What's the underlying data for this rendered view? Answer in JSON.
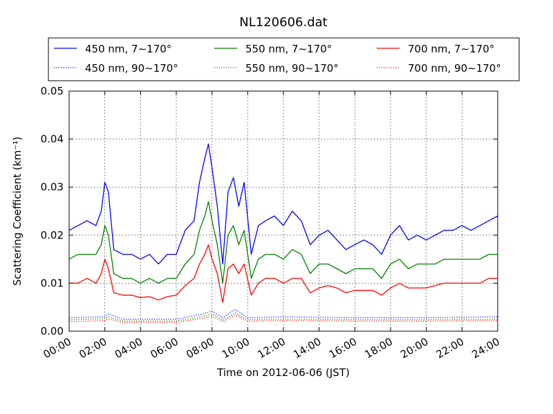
{
  "chart_data": {
    "type": "line",
    "title": "NL120606.dat",
    "xlabel": "Time on 2012-06-06 (JST)",
    "ylabel": "Scattering Coefficient (km⁻¹)",
    "xlim_hours": [
      0,
      24
    ],
    "ylim": [
      0.0,
      0.05
    ],
    "grid": true,
    "legend_position": "top, above plot",
    "x_ticks": [
      "00:00",
      "02:00",
      "04:00",
      "06:00",
      "08:00",
      "10:00",
      "12:00",
      "14:00",
      "16:00",
      "18:00",
      "20:00",
      "22:00",
      "24:00"
    ],
    "y_ticks": [
      "0.00",
      "0.01",
      "0.02",
      "0.03",
      "0.04",
      "0.05"
    ],
    "series": [
      {
        "name": "450 nm, 7∼170°",
        "color": "#0000ff",
        "style": "solid",
        "x": [
          0,
          0.5,
          1,
          1.5,
          1.8,
          2.0,
          2.2,
          2.5,
          3,
          3.5,
          4,
          4.5,
          5,
          5.5,
          6,
          6.5,
          7,
          7.3,
          7.6,
          7.8,
          8.0,
          8.3,
          8.6,
          8.9,
          9.2,
          9.5,
          9.8,
          10.2,
          10.6,
          11,
          11.5,
          12,
          12.5,
          13,
          13.5,
          14,
          14.5,
          15,
          15.5,
          16,
          16.5,
          17,
          17.5,
          18,
          18.5,
          19,
          19.5,
          20,
          20.5,
          21,
          21.5,
          22,
          22.5,
          23,
          23.5,
          24
        ],
        "y": [
          0.021,
          0.022,
          0.023,
          0.022,
          0.025,
          0.031,
          0.029,
          0.017,
          0.016,
          0.016,
          0.015,
          0.016,
          0.014,
          0.016,
          0.016,
          0.021,
          0.023,
          0.031,
          0.036,
          0.039,
          0.034,
          0.026,
          0.014,
          0.029,
          0.032,
          0.026,
          0.031,
          0.016,
          0.022,
          0.023,
          0.024,
          0.022,
          0.025,
          0.023,
          0.018,
          0.02,
          0.021,
          0.019,
          0.017,
          0.018,
          0.019,
          0.018,
          0.016,
          0.02,
          0.022,
          0.019,
          0.02,
          0.019,
          0.02,
          0.021,
          0.021,
          0.022,
          0.021,
          0.022,
          0.023,
          0.024
        ]
      },
      {
        "name": "550 nm, 7∼170°",
        "color": "#008000",
        "style": "solid",
        "x": [
          0,
          0.5,
          1,
          1.5,
          1.8,
          2.0,
          2.2,
          2.5,
          3,
          3.5,
          4,
          4.5,
          5,
          5.5,
          6,
          6.5,
          7,
          7.3,
          7.6,
          7.8,
          8.0,
          8.3,
          8.6,
          8.9,
          9.2,
          9.5,
          9.8,
          10.2,
          10.6,
          11,
          11.5,
          12,
          12.5,
          13,
          13.5,
          14,
          14.5,
          15,
          15.5,
          16,
          16.5,
          17,
          17.5,
          18,
          18.5,
          19,
          19.5,
          20,
          20.5,
          21,
          21.5,
          22,
          22.5,
          23,
          23.5,
          24
        ],
        "y": [
          0.015,
          0.016,
          0.016,
          0.016,
          0.018,
          0.022,
          0.02,
          0.012,
          0.011,
          0.011,
          0.01,
          0.011,
          0.01,
          0.011,
          0.011,
          0.014,
          0.016,
          0.021,
          0.024,
          0.027,
          0.023,
          0.018,
          0.01,
          0.02,
          0.022,
          0.018,
          0.021,
          0.011,
          0.015,
          0.016,
          0.016,
          0.015,
          0.017,
          0.016,
          0.012,
          0.014,
          0.014,
          0.013,
          0.012,
          0.013,
          0.013,
          0.013,
          0.011,
          0.014,
          0.015,
          0.013,
          0.014,
          0.014,
          0.014,
          0.015,
          0.015,
          0.015,
          0.015,
          0.015,
          0.016,
          0.016
        ]
      },
      {
        "name": "700 nm, 7∼170°",
        "color": "#ff0000",
        "style": "solid",
        "x": [
          0,
          0.5,
          1,
          1.5,
          1.8,
          2.0,
          2.2,
          2.5,
          3,
          3.5,
          4,
          4.5,
          5,
          5.5,
          6,
          6.5,
          7,
          7.3,
          7.6,
          7.8,
          8.0,
          8.3,
          8.6,
          8.9,
          9.2,
          9.5,
          9.8,
          10.2,
          10.6,
          11,
          11.5,
          12,
          12.5,
          13,
          13.5,
          14,
          14.5,
          15,
          15.5,
          16,
          16.5,
          17,
          17.5,
          18,
          18.5,
          19,
          19.5,
          20,
          20.5,
          21,
          21.5,
          22,
          22.5,
          23,
          23.5,
          24
        ],
        "y": [
          0.01,
          0.01,
          0.011,
          0.01,
          0.012,
          0.015,
          0.013,
          0.008,
          0.0075,
          0.0075,
          0.007,
          0.0072,
          0.0065,
          0.0072,
          0.0075,
          0.0095,
          0.011,
          0.014,
          0.016,
          0.018,
          0.015,
          0.012,
          0.006,
          0.013,
          0.014,
          0.012,
          0.014,
          0.0075,
          0.01,
          0.011,
          0.011,
          0.01,
          0.011,
          0.011,
          0.008,
          0.009,
          0.0095,
          0.009,
          0.008,
          0.0085,
          0.0085,
          0.0085,
          0.0075,
          0.009,
          0.01,
          0.009,
          0.009,
          0.009,
          0.0095,
          0.01,
          0.01,
          0.01,
          0.01,
          0.01,
          0.011,
          0.011
        ]
      },
      {
        "name": "450 nm, 90∼170°",
        "color": "#0000ff",
        "style": "dotted",
        "x": [
          0,
          2,
          2.2,
          3,
          6,
          7.5,
          8,
          8.6,
          9.3,
          10,
          12,
          16,
          20,
          24
        ],
        "y": [
          0.0028,
          0.003,
          0.0036,
          0.0025,
          0.0025,
          0.0036,
          0.0042,
          0.0028,
          0.0045,
          0.0028,
          0.003,
          0.0028,
          0.0028,
          0.003
        ]
      },
      {
        "name": "550 nm, 90∼170°",
        "color": "#008000",
        "style": "dotted",
        "x": [
          0,
          2,
          2.2,
          3,
          6,
          7.5,
          8,
          8.6,
          9.3,
          10,
          12,
          16,
          20,
          24
        ],
        "y": [
          0.0024,
          0.0026,
          0.003,
          0.0021,
          0.0021,
          0.0031,
          0.0036,
          0.0023,
          0.0038,
          0.0024,
          0.0025,
          0.0024,
          0.0024,
          0.0025
        ]
      },
      {
        "name": "700 nm, 90∼170°",
        "color": "#ff0000",
        "style": "dotted",
        "x": [
          0,
          2,
          2.2,
          3,
          6,
          7.5,
          8,
          8.6,
          9.3,
          10,
          12,
          16,
          20,
          24
        ],
        "y": [
          0.002,
          0.0022,
          0.0026,
          0.0018,
          0.0018,
          0.0027,
          0.0031,
          0.002,
          0.0033,
          0.0021,
          0.0022,
          0.0021,
          0.0021,
          0.0022
        ]
      }
    ]
  }
}
